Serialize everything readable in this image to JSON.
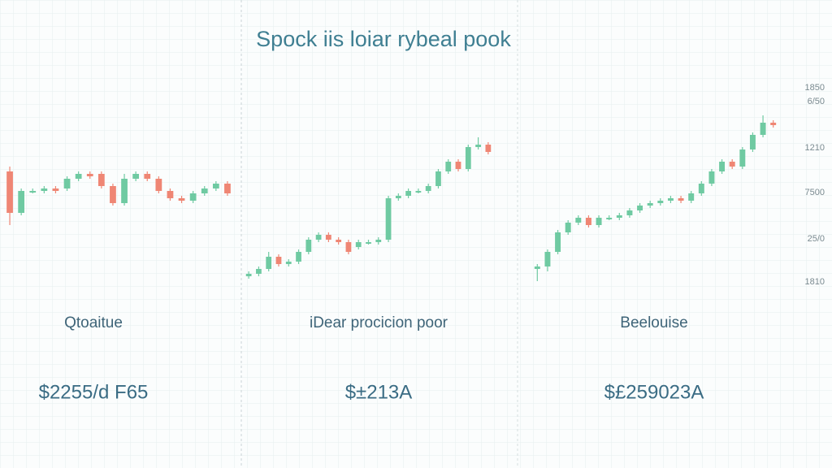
{
  "title": "Spock iis loiar rybeal pook",
  "axis_labels": [
    "1850",
    "6/50",
    "1210",
    "7500",
    "25/0",
    "1810"
  ],
  "up_color": "#6fcaa2",
  "down_color": "#ef8674",
  "ylim": [
    0,
    100
  ],
  "chart_data": [
    {
      "type": "candlestick",
      "label": "Qtoaitue",
      "price": "$2255/d F65",
      "candles": [
        [
          63,
          46,
          65,
          41
        ],
        [
          46,
          55,
          56,
          45
        ],
        [
          55,
          55,
          56,
          54
        ],
        [
          55,
          56,
          57,
          54
        ],
        [
          56,
          55,
          57,
          54
        ],
        [
          56,
          60,
          61,
          55
        ],
        [
          60,
          62,
          63,
          59
        ],
        [
          62,
          61,
          63,
          60
        ],
        [
          62,
          57,
          63,
          56
        ],
        [
          57,
          50,
          58,
          49
        ],
        [
          50,
          60,
          62,
          49
        ],
        [
          60,
          62,
          63,
          59
        ],
        [
          62,
          60,
          63,
          59
        ],
        [
          60,
          55,
          61,
          54
        ],
        [
          55,
          52,
          56,
          51
        ],
        [
          52,
          51,
          53,
          50
        ],
        [
          51,
          54,
          55,
          50
        ],
        [
          54,
          56,
          57,
          53
        ],
        [
          56,
          58,
          59,
          55
        ],
        [
          58,
          54,
          59,
          53
        ]
      ]
    },
    {
      "type": "candlestick",
      "label": "iDear procicion poor",
      "price": "$±213A",
      "candles": [
        [
          20,
          21,
          22,
          19
        ],
        [
          21,
          23,
          24,
          20
        ],
        [
          23,
          28,
          30,
          22
        ],
        [
          28,
          25,
          29,
          24
        ],
        [
          25,
          26,
          27,
          24
        ],
        [
          26,
          30,
          31,
          25
        ],
        [
          30,
          35,
          36,
          29
        ],
        [
          35,
          37,
          38,
          34
        ],
        [
          37,
          35,
          38,
          34
        ],
        [
          35,
          34,
          36,
          33
        ],
        [
          34,
          30,
          35,
          29
        ],
        [
          32,
          34,
          35,
          31
        ],
        [
          34,
          34,
          35,
          33
        ],
        [
          34,
          35,
          36,
          33
        ],
        [
          35,
          52,
          53,
          34
        ],
        [
          52,
          53,
          54,
          51
        ],
        [
          53,
          55,
          56,
          52
        ],
        [
          55,
          55,
          56,
          54
        ],
        [
          55,
          57,
          58,
          54
        ],
        [
          57,
          63,
          64,
          56
        ],
        [
          63,
          67,
          68,
          62
        ],
        [
          67,
          64,
          68,
          63
        ],
        [
          64,
          73,
          74,
          63
        ],
        [
          73,
          74,
          77,
          72
        ],
        [
          74,
          71,
          75,
          70
        ]
      ]
    },
    {
      "type": "candlestick",
      "label": "Beelouise",
      "price": "$£259023A",
      "candles": [
        [
          23,
          24,
          25,
          18
        ],
        [
          24,
          30,
          31,
          22
        ],
        [
          30,
          38,
          39,
          29
        ],
        [
          38,
          42,
          43,
          37
        ],
        [
          42,
          44,
          45,
          41
        ],
        [
          44,
          41,
          45,
          40
        ],
        [
          41,
          44,
          45,
          40
        ],
        [
          44,
          44,
          45,
          43
        ],
        [
          44,
          45,
          46,
          43
        ],
        [
          45,
          47,
          48,
          44
        ],
        [
          47,
          49,
          50,
          46
        ],
        [
          49,
          50,
          51,
          48
        ],
        [
          50,
          51,
          52,
          49
        ],
        [
          51,
          52,
          53,
          50
        ],
        [
          52,
          51,
          53,
          50
        ],
        [
          51,
          54,
          55,
          50
        ],
        [
          54,
          58,
          59,
          53
        ],
        [
          58,
          63,
          64,
          57
        ],
        [
          63,
          67,
          68,
          62
        ],
        [
          67,
          65,
          68,
          64
        ],
        [
          65,
          72,
          73,
          64
        ],
        [
          72,
          78,
          79,
          71
        ],
        [
          78,
          83,
          86,
          77
        ],
        [
          83,
          82,
          84,
          81
        ]
      ]
    }
  ]
}
